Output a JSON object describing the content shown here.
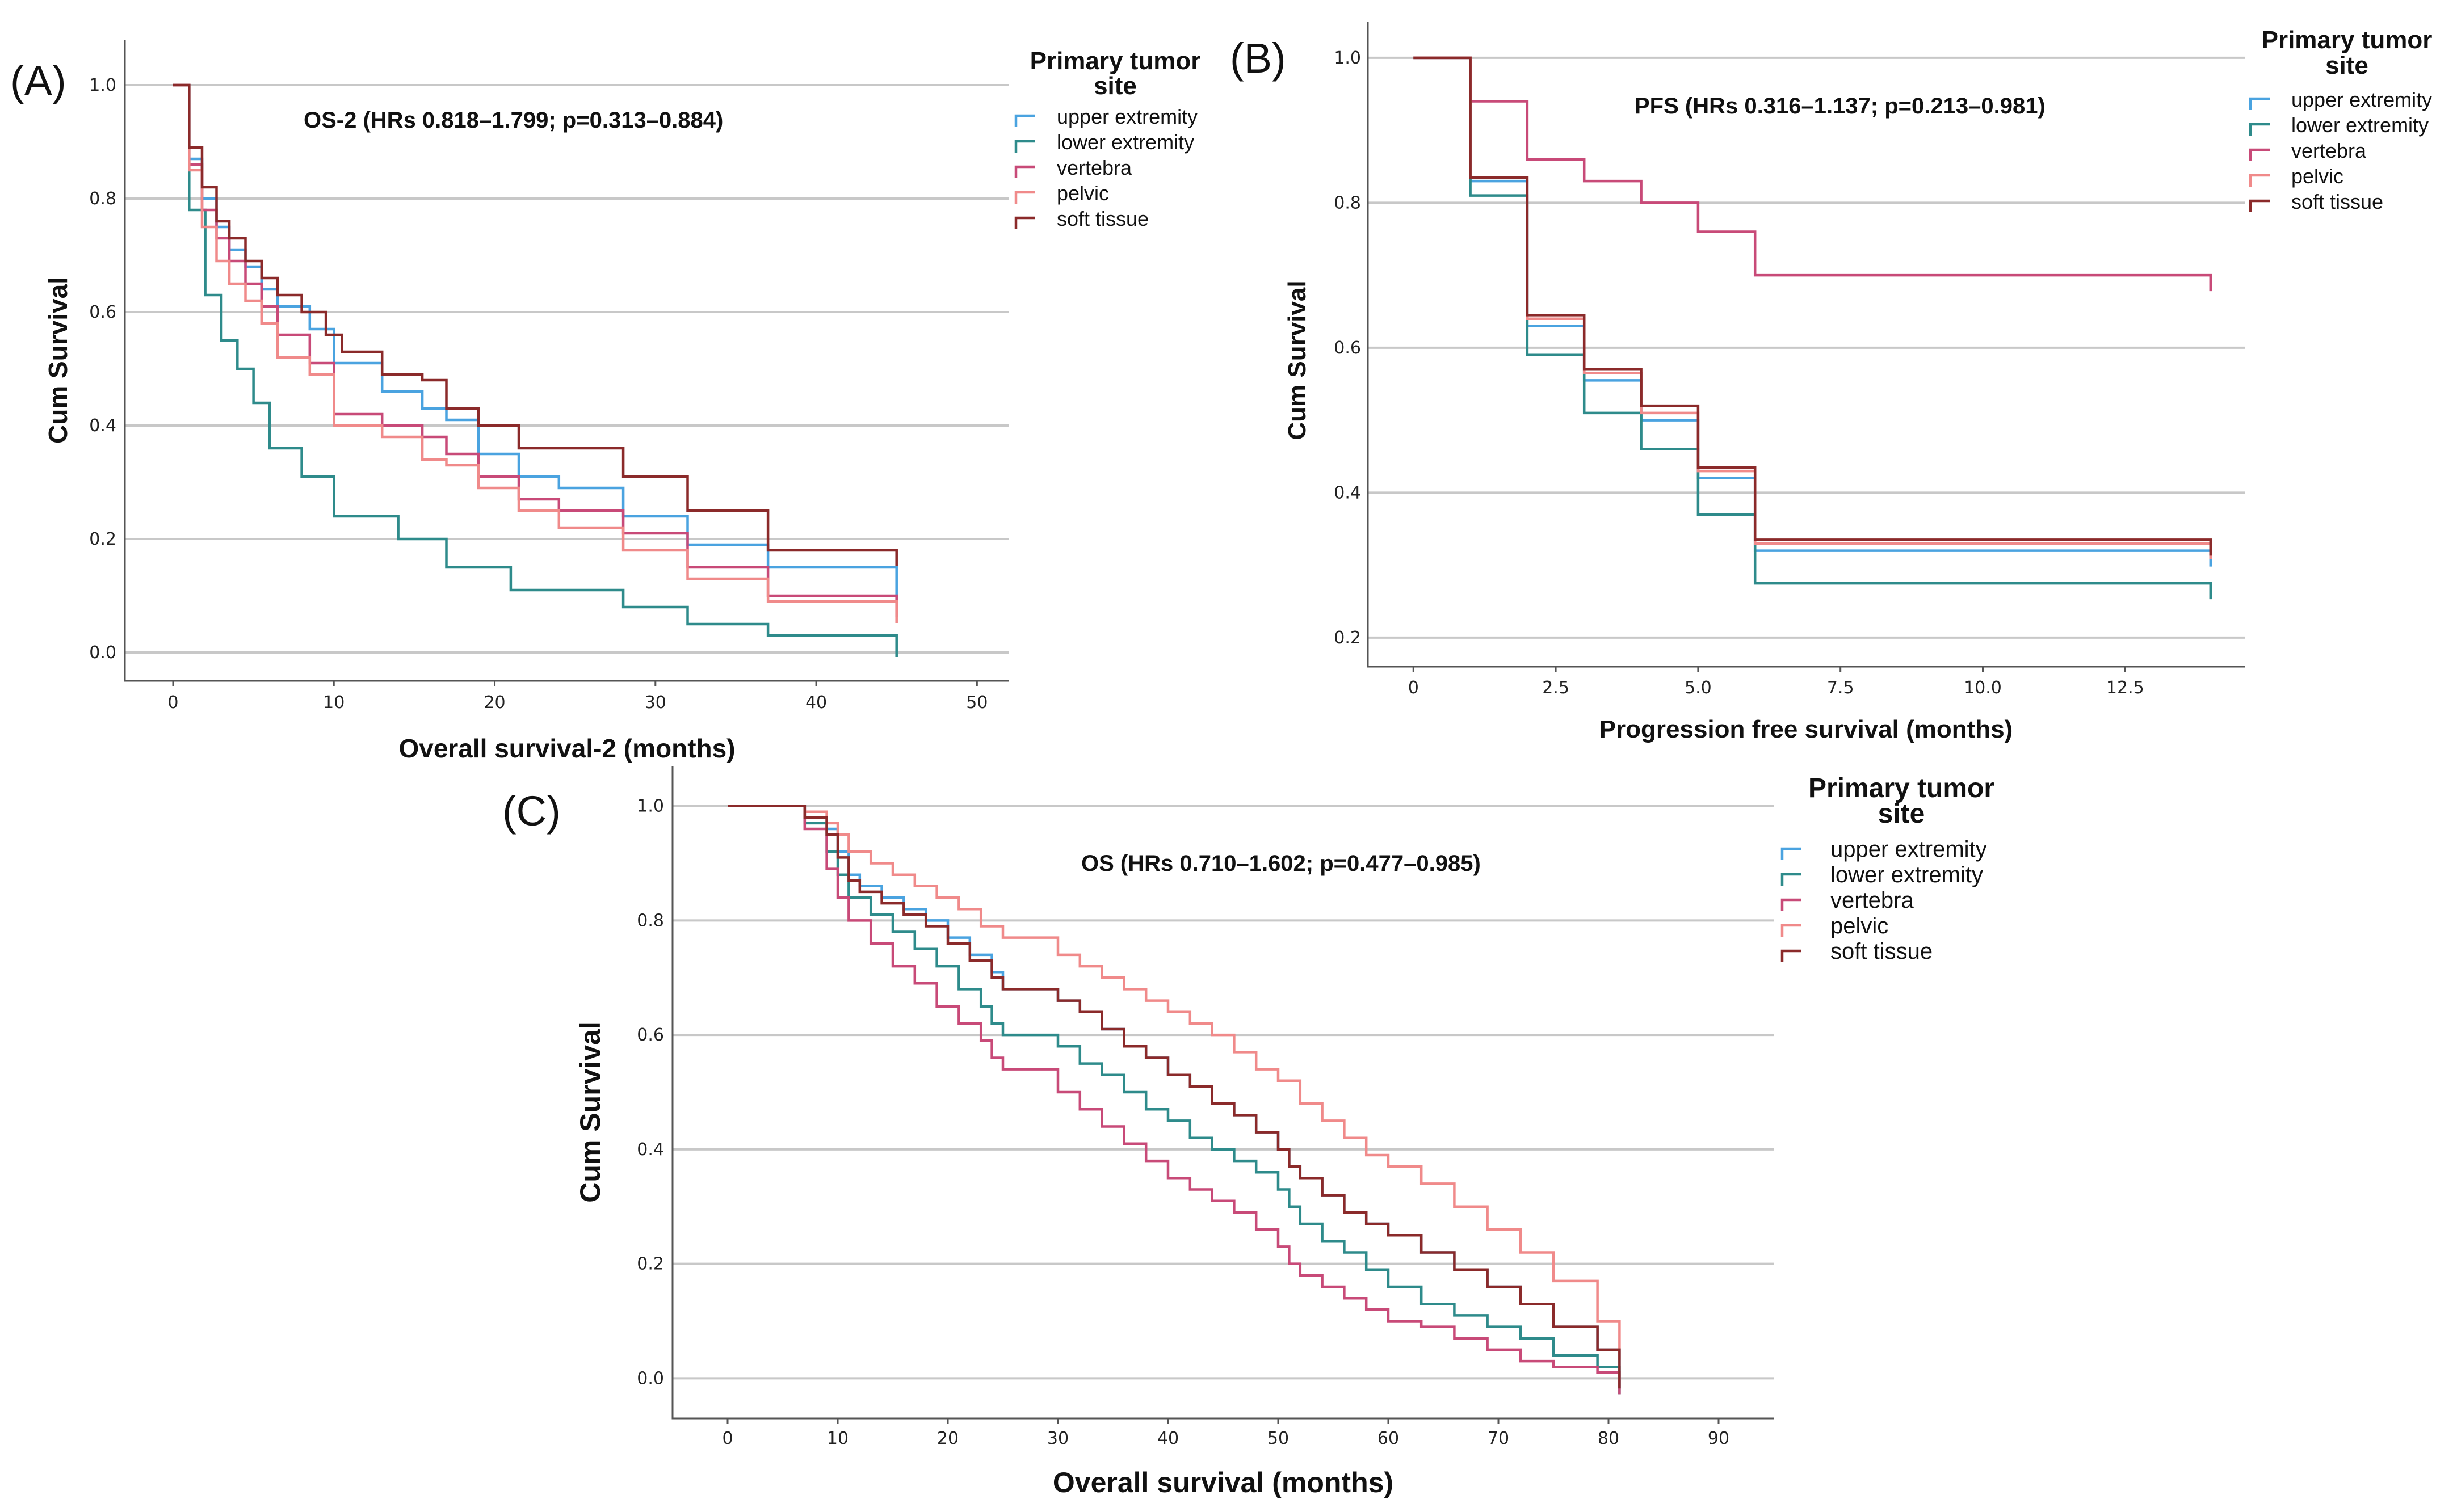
{
  "chart_data": [
    {
      "type": "line",
      "panel_label": "(A)",
      "annotation": "OS-2 (HRs 0.818–1.799; p=0.313–0.884)",
      "xlabel": "Overall survival-2 (months)",
      "ylabel": "Cum Survival",
      "xlim": [
        -3,
        52
      ],
      "ylim": [
        -0.05,
        1.08
      ],
      "xticks": [
        0,
        10,
        20,
        30,
        40,
        50
      ],
      "xtick_labels": [
        "0",
        "10",
        "20",
        "30",
        "40",
        "50"
      ],
      "yticks": [
        0.0,
        0.2,
        0.4,
        0.6,
        0.8,
        1.0
      ],
      "ytick_labels": [
        "0.0",
        "0.2",
        "0.4",
        "0.6",
        "0.8",
        "1.0"
      ],
      "legend_title": "Primary tumor site",
      "legend_position": "top-right",
      "series": [
        {
          "name": "upper extremity",
          "color": "#4aa3e0",
          "x": [
            0,
            1,
            1.8,
            2.7,
            3.5,
            4.5,
            5.5,
            6.5,
            8.5,
            10,
            13,
            15.5,
            17,
            19,
            21.5,
            24,
            28,
            32,
            37,
            45
          ],
          "y": [
            1.0,
            0.87,
            0.8,
            0.75,
            0.71,
            0.68,
            0.64,
            0.61,
            0.57,
            0.51,
            0.46,
            0.43,
            0.41,
            0.35,
            0.31,
            0.29,
            0.24,
            0.19,
            0.15,
            0.12
          ]
        },
        {
          "name": "lower extremity",
          "color": "#2e8b8b",
          "x": [
            0,
            1,
            2,
            3,
            4,
            5,
            6,
            8,
            10,
            14,
            17,
            21,
            28,
            32,
            37,
            45
          ],
          "y": [
            1.0,
            0.78,
            0.63,
            0.55,
            0.5,
            0.44,
            0.36,
            0.31,
            0.24,
            0.2,
            0.15,
            0.11,
            0.08,
            0.05,
            0.03,
            0.02
          ]
        },
        {
          "name": "vertebra",
          "color": "#c84a78",
          "x": [
            0,
            1,
            1.8,
            2.7,
            3.5,
            4.5,
            5.5,
            6.5,
            8.5,
            10,
            13,
            15.5,
            17,
            19,
            21.5,
            24,
            28,
            32,
            37,
            45
          ],
          "y": [
            1.0,
            0.86,
            0.78,
            0.73,
            0.69,
            0.65,
            0.61,
            0.56,
            0.51,
            0.42,
            0.4,
            0.38,
            0.35,
            0.31,
            0.27,
            0.25,
            0.21,
            0.15,
            0.1,
            0.09
          ]
        },
        {
          "name": "pelvic",
          "color": "#f08a8a",
          "x": [
            0,
            1,
            1.8,
            2.7,
            3.5,
            4.5,
            5.5,
            6.5,
            8.5,
            10,
            13,
            15.5,
            17,
            19,
            21.5,
            24,
            28,
            32,
            37,
            45
          ],
          "y": [
            1.0,
            0.85,
            0.75,
            0.69,
            0.65,
            0.62,
            0.58,
            0.52,
            0.49,
            0.4,
            0.38,
            0.34,
            0.33,
            0.29,
            0.25,
            0.22,
            0.18,
            0.13,
            0.09,
            0.08
          ]
        },
        {
          "name": "soft tissue",
          "color": "#8b2a2a",
          "x": [
            0,
            1,
            1.8,
            2.7,
            3.5,
            4.5,
            5.5,
            6.5,
            8,
            9.5,
            10.5,
            13,
            15.5,
            17,
            19,
            21.5,
            28,
            32,
            37,
            45
          ],
          "y": [
            1.0,
            0.89,
            0.82,
            0.76,
            0.73,
            0.69,
            0.66,
            0.63,
            0.6,
            0.56,
            0.53,
            0.49,
            0.48,
            0.43,
            0.4,
            0.36,
            0.31,
            0.25,
            0.18,
            0.18
          ]
        }
      ]
    },
    {
      "type": "line",
      "panel_label": "(B)",
      "annotation": "PFS (HRs 0.316–1.137; p=0.213–0.981)",
      "xlabel": "Progression free survival (months)",
      "ylabel": "Cum Survival",
      "xlim": [
        -0.8,
        14.6
      ],
      "ylim": [
        0.16,
        1.05
      ],
      "xticks": [
        0,
        2.5,
        5.0,
        7.5,
        10.0,
        12.5
      ],
      "xtick_labels": [
        "0",
        "2.5",
        "5.0",
        "7.5",
        "10.0",
        "12.5"
      ],
      "yticks": [
        0.2,
        0.4,
        0.6,
        0.8,
        1.0
      ],
      "ytick_labels": [
        "0.2",
        "0.4",
        "0.6",
        "0.8",
        "1.0"
      ],
      "legend_title": "Primary tumor site",
      "legend_position": "top-right",
      "series": [
        {
          "name": "upper extremity",
          "color": "#4aa3e0",
          "x": [
            0,
            1,
            2,
            3,
            4,
            5,
            6,
            14
          ],
          "y": [
            1.0,
            0.83,
            0.63,
            0.555,
            0.5,
            0.42,
            0.32,
            0.32
          ]
        },
        {
          "name": "lower extremity",
          "color": "#2e8b8b",
          "x": [
            0,
            1,
            2,
            3,
            4,
            5,
            6,
            14
          ],
          "y": [
            1.0,
            0.81,
            0.59,
            0.51,
            0.46,
            0.37,
            0.275,
            0.275
          ]
        },
        {
          "name": "vertebra",
          "color": "#c84a78",
          "x": [
            0,
            1,
            2,
            3,
            4,
            5,
            6,
            14
          ],
          "y": [
            1.0,
            0.94,
            0.86,
            0.83,
            0.8,
            0.76,
            0.7,
            0.7
          ]
        },
        {
          "name": "pelvic",
          "color": "#f08a8a",
          "x": [
            0,
            1,
            2,
            3,
            4,
            5,
            6,
            14
          ],
          "y": [
            1.0,
            0.835,
            0.64,
            0.565,
            0.51,
            0.43,
            0.33,
            0.33
          ]
        },
        {
          "name": "soft tissue",
          "color": "#8b2a2a",
          "x": [
            0,
            1,
            2,
            3,
            4,
            5,
            6,
            14
          ],
          "y": [
            1.0,
            0.835,
            0.645,
            0.57,
            0.52,
            0.435,
            0.335,
            0.335
          ]
        }
      ]
    },
    {
      "type": "line",
      "panel_label": "(C)",
      "annotation": "OS (HRs 0.710–1.602; p=0.477–0.985)",
      "xlabel": "Overall survival (months)",
      "ylabel": "Cum Survival",
      "xlim": [
        -5,
        95
      ],
      "ylim": [
        -0.07,
        1.07
      ],
      "xticks": [
        0,
        10,
        20,
        30,
        40,
        50,
        60,
        70,
        80,
        90
      ],
      "xtick_labels": [
        "0",
        "10",
        "20",
        "30",
        "40",
        "50",
        "60",
        "70",
        "80",
        "90"
      ],
      "yticks": [
        0.0,
        0.2,
        0.4,
        0.6,
        0.8,
        1.0
      ],
      "ytick_labels": [
        "0.0",
        "0.2",
        "0.4",
        "0.6",
        "0.8",
        "1.0"
      ],
      "legend_title": "Primary tumor site",
      "legend_position": "top-right",
      "series": [
        {
          "name": "upper extremity",
          "color": "#4aa3e0",
          "x": [
            0,
            7,
            9,
            10,
            11,
            12,
            14,
            16,
            18,
            20,
            22,
            24,
            25,
            30,
            32,
            34,
            36,
            38,
            40,
            42,
            44,
            46,
            48,
            50,
            51,
            52,
            54,
            56,
            58,
            60,
            63,
            66,
            69,
            72,
            75,
            79,
            81
          ],
          "y": [
            1.0,
            0.98,
            0.96,
            0.92,
            0.88,
            0.86,
            0.84,
            0.82,
            0.8,
            0.77,
            0.74,
            0.71,
            0.68,
            0.66,
            0.64,
            0.61,
            0.58,
            0.56,
            0.53,
            0.51,
            0.48,
            0.46,
            0.43,
            0.4,
            0.37,
            0.35,
            0.32,
            0.29,
            0.27,
            0.25,
            0.22,
            0.19,
            0.16,
            0.13,
            0.09,
            0.05,
            0.01
          ]
        },
        {
          "name": "lower extremity",
          "color": "#2e8b8b",
          "x": [
            0,
            7,
            9,
            10,
            11,
            13,
            15,
            17,
            19,
            21,
            23,
            24,
            25,
            30,
            32,
            34,
            36,
            38,
            40,
            42,
            44,
            46,
            48,
            50,
            51,
            52,
            54,
            56,
            58,
            60,
            63,
            66,
            69,
            72,
            75,
            79,
            81
          ],
          "y": [
            1.0,
            0.97,
            0.92,
            0.88,
            0.84,
            0.81,
            0.78,
            0.75,
            0.72,
            0.68,
            0.65,
            0.62,
            0.6,
            0.58,
            0.55,
            0.53,
            0.5,
            0.47,
            0.45,
            0.42,
            0.4,
            0.38,
            0.36,
            0.33,
            0.3,
            0.27,
            0.24,
            0.22,
            0.19,
            0.16,
            0.13,
            0.11,
            0.09,
            0.07,
            0.04,
            0.02,
            0.0
          ]
        },
        {
          "name": "vertebra",
          "color": "#c84a78",
          "x": [
            0,
            7,
            9,
            10,
            11,
            13,
            15,
            17,
            19,
            21,
            23,
            24,
            25,
            30,
            32,
            34,
            36,
            38,
            40,
            42,
            44,
            46,
            48,
            50,
            51,
            52,
            54,
            56,
            58,
            60,
            63,
            66,
            69,
            72,
            75,
            79,
            81
          ],
          "y": [
            1.0,
            0.96,
            0.89,
            0.84,
            0.8,
            0.76,
            0.72,
            0.69,
            0.65,
            0.62,
            0.59,
            0.56,
            0.54,
            0.5,
            0.47,
            0.44,
            0.41,
            0.38,
            0.35,
            0.33,
            0.31,
            0.29,
            0.26,
            0.23,
            0.2,
            0.18,
            0.16,
            0.14,
            0.12,
            0.1,
            0.09,
            0.07,
            0.05,
            0.03,
            0.02,
            0.01,
            0.0
          ]
        },
        {
          "name": "pelvic",
          "color": "#f08a8a",
          "x": [
            0,
            7,
            9,
            10,
            11,
            13,
            15,
            17,
            19,
            21,
            23,
            25,
            30,
            32,
            34,
            36,
            38,
            40,
            42,
            44,
            46,
            48,
            50,
            52,
            54,
            56,
            58,
            60,
            63,
            66,
            69,
            72,
            75,
            79,
            81
          ],
          "y": [
            1.0,
            0.99,
            0.97,
            0.95,
            0.92,
            0.9,
            0.88,
            0.86,
            0.84,
            0.82,
            0.79,
            0.77,
            0.74,
            0.72,
            0.7,
            0.68,
            0.66,
            0.64,
            0.62,
            0.6,
            0.57,
            0.54,
            0.52,
            0.48,
            0.45,
            0.42,
            0.39,
            0.37,
            0.34,
            0.3,
            0.26,
            0.22,
            0.17,
            0.1,
            0.06
          ]
        },
        {
          "name": "soft tissue",
          "color": "#8b2a2a",
          "x": [
            0,
            7,
            9,
            10,
            11,
            12,
            14,
            16,
            18,
            20,
            22,
            24,
            25,
            30,
            32,
            34,
            36,
            38,
            40,
            42,
            44,
            46,
            48,
            50,
            51,
            52,
            54,
            56,
            58,
            60,
            63,
            66,
            69,
            72,
            75,
            79,
            81
          ],
          "y": [
            1.0,
            0.98,
            0.95,
            0.91,
            0.87,
            0.85,
            0.83,
            0.81,
            0.79,
            0.76,
            0.73,
            0.7,
            0.68,
            0.66,
            0.64,
            0.61,
            0.58,
            0.56,
            0.53,
            0.51,
            0.48,
            0.46,
            0.43,
            0.4,
            0.37,
            0.35,
            0.32,
            0.29,
            0.27,
            0.25,
            0.22,
            0.19,
            0.16,
            0.13,
            0.09,
            0.05,
            0.01
          ]
        }
      ]
    }
  ]
}
